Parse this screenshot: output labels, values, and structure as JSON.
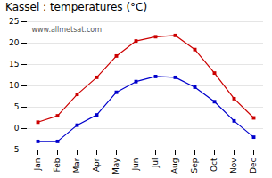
{
  "chart_data": {
    "type": "line",
    "title": "Kassel : temperatures (°C)",
    "categories": [
      "Jan",
      "Feb",
      "Mar",
      "Apr",
      "May",
      "Jun",
      "Jul",
      "Aug",
      "Sep",
      "Oct",
      "Nov",
      "Dec"
    ],
    "series": [
      {
        "color": "#cc0000",
        "marker": "square",
        "values": [
          1.5,
          3.0,
          8.0,
          12.0,
          17.0,
          20.5,
          21.5,
          21.8,
          18.5,
          13.0,
          7.0,
          2.5
        ]
      },
      {
        "color": "#0000cc",
        "marker": "square",
        "values": [
          -3.0,
          -3.0,
          0.8,
          3.2,
          8.5,
          11.0,
          12.2,
          12.0,
          9.7,
          6.3,
          1.8,
          -2.0
        ]
      }
    ],
    "ylim": [
      -5,
      25
    ],
    "yticks": [
      -5,
      0,
      5,
      10,
      15,
      20,
      25
    ],
    "grid": true,
    "annotation": "www.allmetsat.com"
  }
}
